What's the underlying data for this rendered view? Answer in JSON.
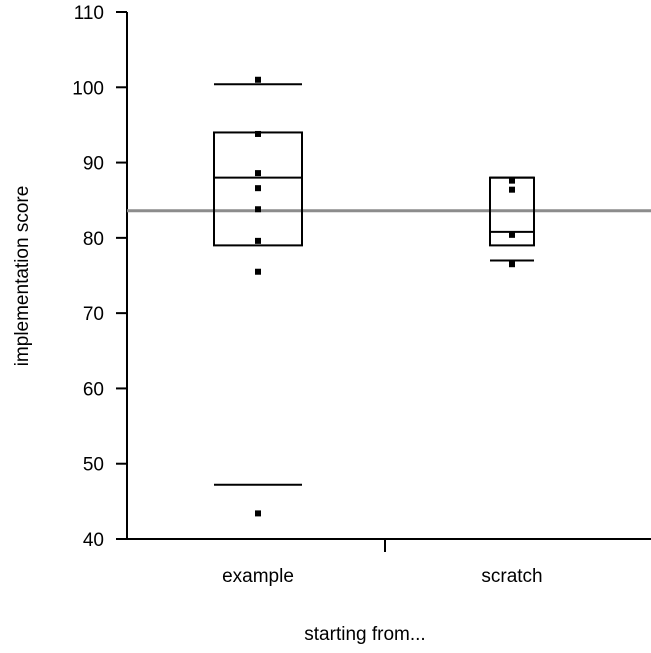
{
  "chart_data": {
    "type": "box",
    "xlabel": "starting from...",
    "ylabel": "implementation score",
    "ylim": [
      40,
      110
    ],
    "yticks": [
      40,
      50,
      60,
      70,
      80,
      90,
      100,
      110
    ],
    "categories": [
      "example",
      "scratch"
    ],
    "reference_line": {
      "y": 83.6,
      "color": "#8c8c8c"
    },
    "groups": [
      {
        "name": "example",
        "whisker_low": 47.2,
        "q1": 79,
        "median": 88,
        "q3": 94,
        "whisker_high": 100.4,
        "points": [
          101,
          93.8,
          88.6,
          86.6,
          83.8,
          79.6,
          75.5,
          43.4
        ]
      },
      {
        "name": "scratch",
        "whisker_low": 77,
        "q1": 79,
        "median": 80.8,
        "q3": 88,
        "whisker_high": 88,
        "points": [
          87.6,
          86.4,
          80.4,
          76.5
        ]
      }
    ],
    "grid": false,
    "legend": "none"
  }
}
